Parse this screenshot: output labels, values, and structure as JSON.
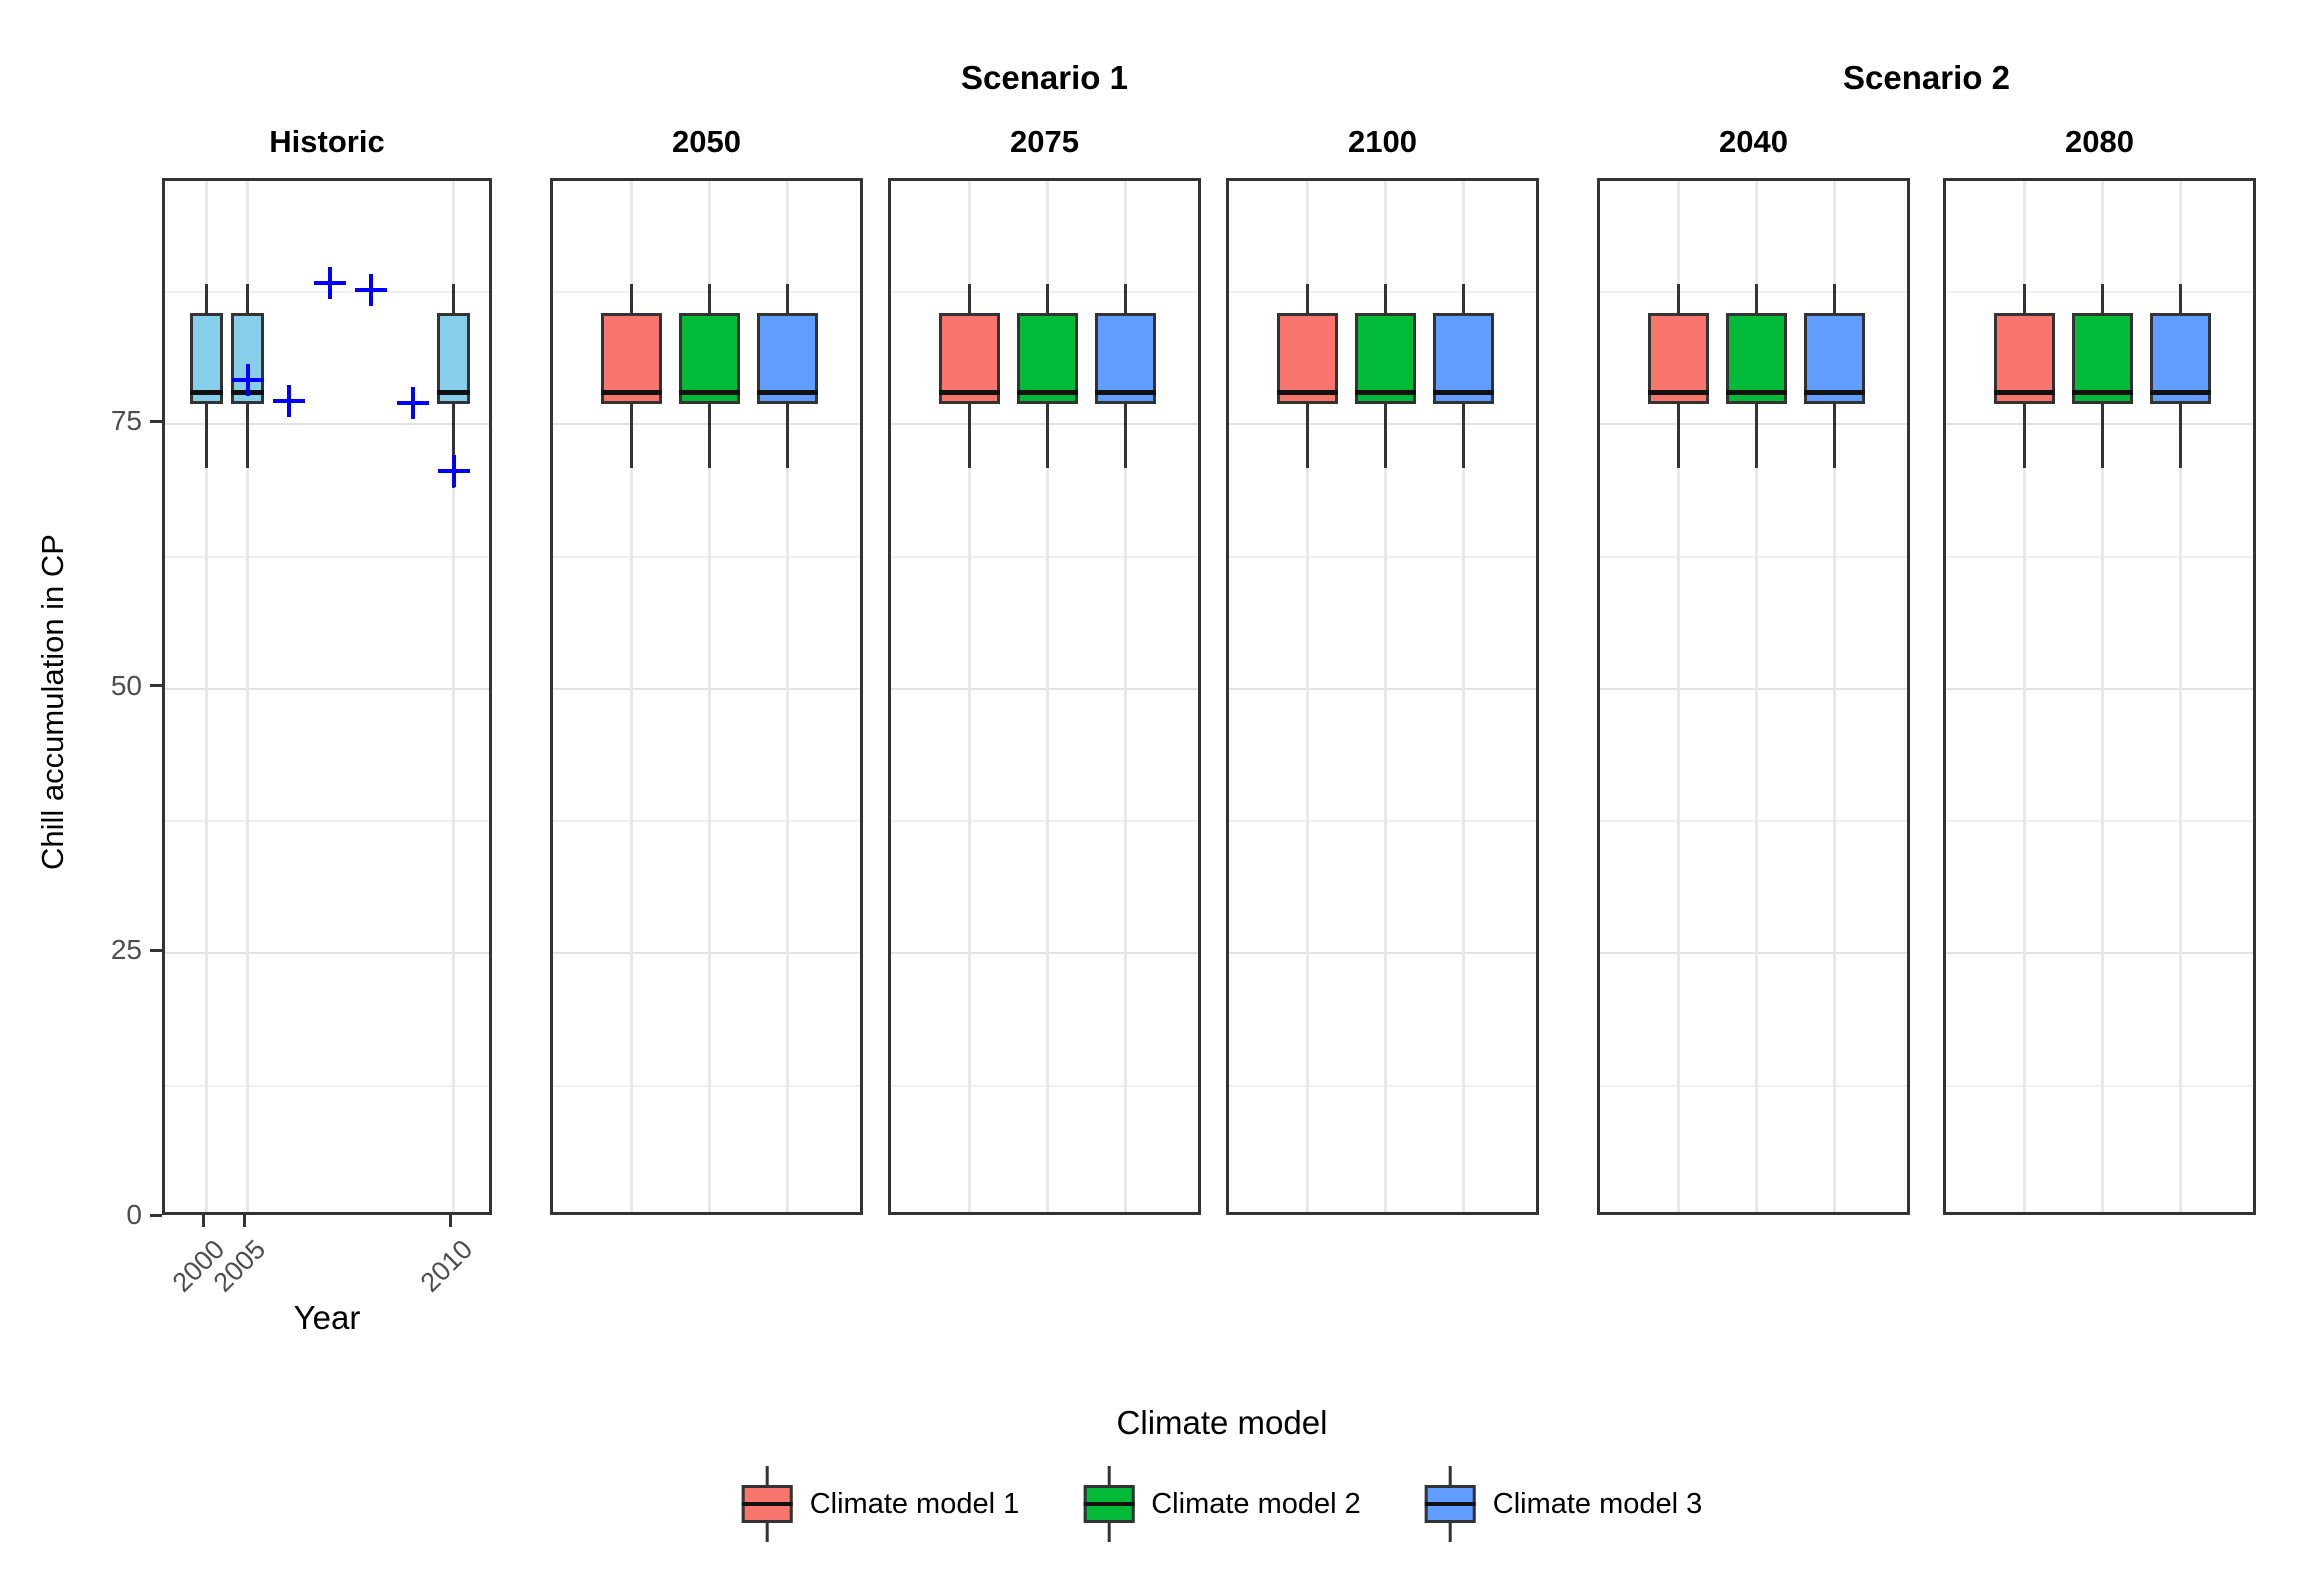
{
  "chart_data": {
    "type": "boxplot",
    "title": "",
    "ylabel": "Chill accumulation in CP",
    "xlabel": "Year",
    "ylim": [
      0,
      98
    ],
    "y_ticks": [
      0,
      25,
      50,
      75
    ],
    "y_minor_gridlines": [
      12.5,
      37.5,
      62.5,
      87.5
    ],
    "grid": true,
    "colors": {
      "historic": "#87CEEB",
      "model1": "#F8766D",
      "model2": "#00BA38",
      "model3": "#619CFF",
      "point": "#0000FF"
    },
    "facet_groups": [
      {
        "label": "",
        "panels": [
          "Historic"
        ]
      },
      {
        "label": "Scenario 1",
        "panels": [
          "2050",
          "2075",
          "2100"
        ]
      },
      {
        "label": "Scenario 2",
        "panels": [
          "2040",
          "2080"
        ]
      }
    ],
    "panels": [
      {
        "title": "Historic",
        "kind": "historic",
        "n_slots": 7,
        "x_ticks": [
          {
            "label": "2000",
            "slot": 1
          },
          {
            "label": "2005",
            "slot": 2
          },
          {
            "label": "2010",
            "slot": 7
          }
        ],
        "boxes": [
          {
            "slot": 1,
            "label": "2000",
            "color": "historic",
            "whisker_low": 70.9,
            "q1": 76.9,
            "median": 78.0,
            "q3": 85.5,
            "whisker_high": 88.3
          },
          {
            "slot": 2,
            "label": "2005",
            "color": "historic",
            "whisker_low": 70.9,
            "q1": 76.9,
            "median": 78.0,
            "q3": 85.5,
            "whisker_high": 88.3
          },
          {
            "slot": 7,
            "label": "2010",
            "color": "historic",
            "whisker_low": 69.0,
            "q1": 76.9,
            "median": 78.0,
            "q3": 85.5,
            "whisker_high": 88.3
          }
        ],
        "points": [
          {
            "slot": 2,
            "value": 79.2
          },
          {
            "slot": 3,
            "value": 77.2
          },
          {
            "slot": 4,
            "value": 88.4
          },
          {
            "slot": 5,
            "value": 87.7
          },
          {
            "slot": 6,
            "value": 77.0
          },
          {
            "slot": 7,
            "value": 70.6
          }
        ]
      },
      {
        "title": "2050",
        "kind": "scenario",
        "n_slots": 3,
        "x_ticks": [],
        "boxes": [
          {
            "slot": 1,
            "label": "Climate model 1",
            "color": "model1",
            "whisker_low": 70.9,
            "q1": 76.9,
            "median": 78.0,
            "q3": 85.5,
            "whisker_high": 88.3
          },
          {
            "slot": 2,
            "label": "Climate model 2",
            "color": "model2",
            "whisker_low": 70.9,
            "q1": 76.9,
            "median": 78.0,
            "q3": 85.5,
            "whisker_high": 88.3
          },
          {
            "slot": 3,
            "label": "Climate model 3",
            "color": "model3",
            "whisker_low": 70.9,
            "q1": 76.9,
            "median": 78.0,
            "q3": 85.5,
            "whisker_high": 88.3
          }
        ],
        "points": []
      },
      {
        "title": "2075",
        "kind": "scenario",
        "n_slots": 3,
        "x_ticks": [],
        "boxes": [
          {
            "slot": 1,
            "label": "Climate model 1",
            "color": "model1",
            "whisker_low": 70.9,
            "q1": 76.9,
            "median": 78.0,
            "q3": 85.5,
            "whisker_high": 88.3
          },
          {
            "slot": 2,
            "label": "Climate model 2",
            "color": "model2",
            "whisker_low": 70.9,
            "q1": 76.9,
            "median": 78.0,
            "q3": 85.5,
            "whisker_high": 88.3
          },
          {
            "slot": 3,
            "label": "Climate model 3",
            "color": "model3",
            "whisker_low": 70.9,
            "q1": 76.9,
            "median": 78.0,
            "q3": 85.5,
            "whisker_high": 88.3
          }
        ],
        "points": []
      },
      {
        "title": "2100",
        "kind": "scenario",
        "n_slots": 3,
        "x_ticks": [],
        "boxes": [
          {
            "slot": 1,
            "label": "Climate model 1",
            "color": "model1",
            "whisker_low": 70.9,
            "q1": 76.9,
            "median": 78.0,
            "q3": 85.5,
            "whisker_high": 88.3
          },
          {
            "slot": 2,
            "label": "Climate model 2",
            "color": "model2",
            "whisker_low": 70.9,
            "q1": 76.9,
            "median": 78.0,
            "q3": 85.5,
            "whisker_high": 88.3
          },
          {
            "slot": 3,
            "label": "Climate model 3",
            "color": "model3",
            "whisker_low": 70.9,
            "q1": 76.9,
            "median": 78.0,
            "q3": 85.5,
            "whisker_high": 88.3
          }
        ],
        "points": []
      },
      {
        "title": "2040",
        "kind": "scenario",
        "n_slots": 3,
        "x_ticks": [],
        "boxes": [
          {
            "slot": 1,
            "label": "Climate model 1",
            "color": "model1",
            "whisker_low": 70.9,
            "q1": 76.9,
            "median": 78.0,
            "q3": 85.5,
            "whisker_high": 88.3
          },
          {
            "slot": 2,
            "label": "Climate model 2",
            "color": "model2",
            "whisker_low": 70.9,
            "q1": 76.9,
            "median": 78.0,
            "q3": 85.5,
            "whisker_high": 88.3
          },
          {
            "slot": 3,
            "label": "Climate model 3",
            "color": "model3",
            "whisker_low": 70.9,
            "q1": 76.9,
            "median": 78.0,
            "q3": 85.5,
            "whisker_high": 88.3
          }
        ],
        "points": []
      },
      {
        "title": "2080",
        "kind": "scenario",
        "n_slots": 3,
        "x_ticks": [],
        "boxes": [
          {
            "slot": 1,
            "label": "Climate model 1",
            "color": "model1",
            "whisker_low": 70.9,
            "q1": 76.9,
            "median": 78.0,
            "q3": 85.5,
            "whisker_high": 88.3
          },
          {
            "slot": 2,
            "label": "Climate model 2",
            "color": "model2",
            "whisker_low": 70.9,
            "q1": 76.9,
            "median": 78.0,
            "q3": 85.5,
            "whisker_high": 88.3
          },
          {
            "slot": 3,
            "label": "Climate model 3",
            "color": "model3",
            "whisker_low": 70.9,
            "q1": 76.9,
            "median": 78.0,
            "q3": 85.5,
            "whisker_high": 88.3
          }
        ],
        "points": []
      }
    ],
    "legend": {
      "title": "Climate model",
      "items": [
        {
          "label": "Climate model 1",
          "color": "model1"
        },
        {
          "label": "Climate model 2",
          "color": "model2"
        },
        {
          "label": "Climate model 3",
          "color": "model3"
        }
      ]
    }
  }
}
